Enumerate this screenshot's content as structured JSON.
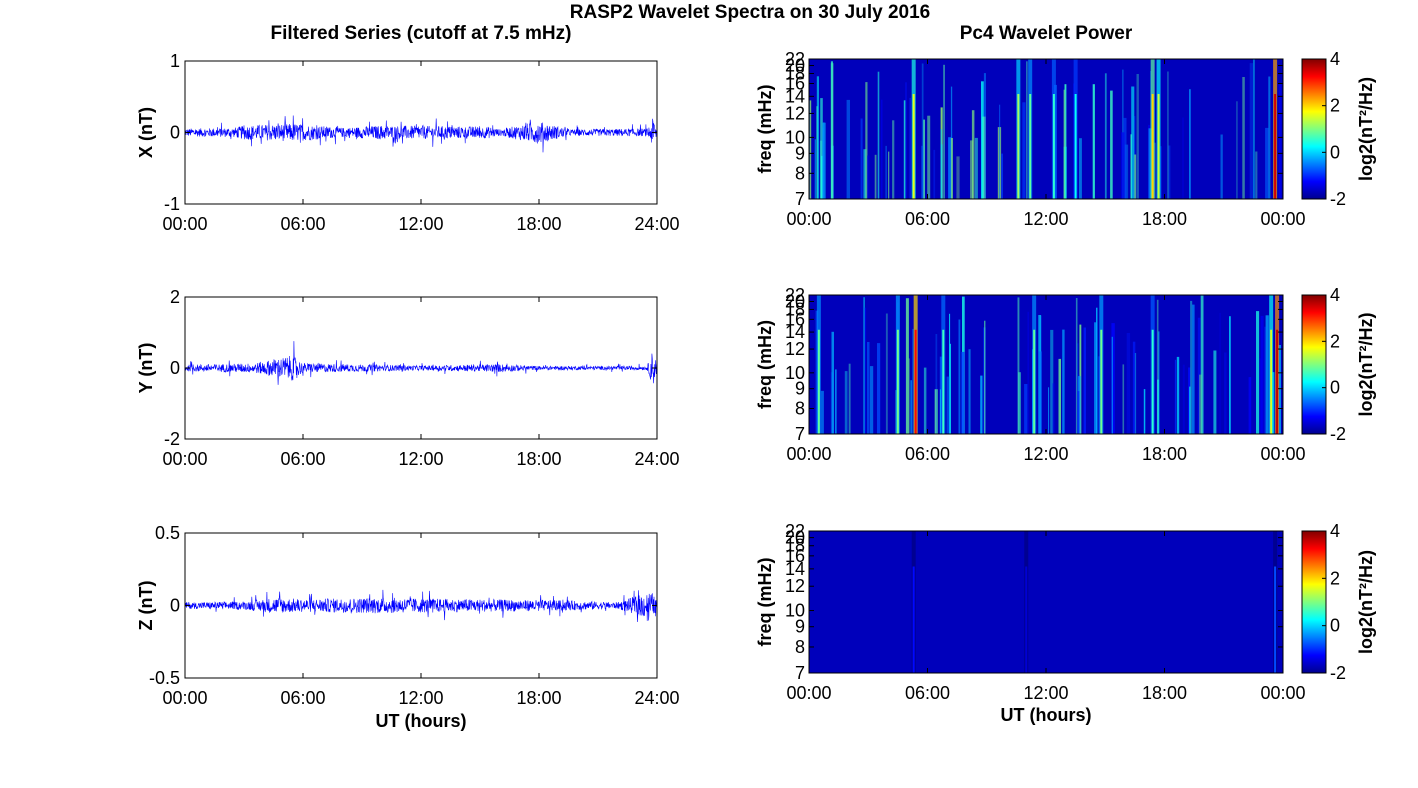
{
  "figure": {
    "title": "RASP2 Wavelet Spectra on 30 July 2016",
    "left_title": "Filtered Series (cutoff at 7.5 mHz)",
    "right_title": "Pc4 Wavelet Power"
  },
  "chart_data": [
    {
      "type": "line",
      "id": "x-series",
      "ylabel": "X (nT)",
      "ylim": [
        -1,
        1
      ],
      "yticks": [
        "1",
        "0",
        "-1"
      ],
      "xticks": [
        "00:00",
        "06:00",
        "12:00",
        "18:00",
        "24:00"
      ],
      "xlabel": "",
      "color": "#0000ff",
      "envelope": [
        {
          "t": 0,
          "a": 0.12
        },
        {
          "t": 2.5,
          "a": 0.15
        },
        {
          "t": 3,
          "a": 0.22
        },
        {
          "t": 5.5,
          "a": 0.28
        },
        {
          "t": 8,
          "a": 0.15
        },
        {
          "t": 10,
          "a": 0.22
        },
        {
          "t": 13,
          "a": 0.2
        },
        {
          "t": 15.5,
          "a": 0.18
        },
        {
          "t": 16,
          "a": 0.1
        },
        {
          "t": 17.5,
          "a": 0.3
        },
        {
          "t": 18,
          "a": 0.35
        },
        {
          "t": 19.5,
          "a": 0.1
        },
        {
          "t": 23.5,
          "a": 0.12
        },
        {
          "t": 23.8,
          "a": 0.45
        },
        {
          "t": 24,
          "a": 0.15
        }
      ]
    },
    {
      "type": "line",
      "id": "y-series",
      "ylabel": "Y (nT)",
      "ylim": [
        -2,
        2
      ],
      "yticks": [
        "2",
        "0",
        "-2"
      ],
      "xticks": [
        "00:00",
        "06:00",
        "12:00",
        "18:00",
        "24:00"
      ],
      "xlabel": "",
      "color": "#0000ff",
      "envelope": [
        {
          "t": 0,
          "a": 0.2
        },
        {
          "t": 3.5,
          "a": 0.3
        },
        {
          "t": 5.5,
          "a": 0.8
        },
        {
          "t": 6,
          "a": 0.3
        },
        {
          "t": 10,
          "a": 0.2
        },
        {
          "t": 12,
          "a": 0.15
        },
        {
          "t": 16,
          "a": 0.25
        },
        {
          "t": 18,
          "a": 0.12
        },
        {
          "t": 23.5,
          "a": 0.12
        },
        {
          "t": 23.8,
          "a": 1.2
        },
        {
          "t": 24,
          "a": 0.3
        }
      ]
    },
    {
      "type": "line",
      "id": "z-series",
      "ylabel": "Z (nT)",
      "ylim": [
        -0.5,
        0.5
      ],
      "yticks": [
        "0.5",
        "0",
        "-0.5"
      ],
      "xticks": [
        "00:00",
        "06:00",
        "12:00",
        "18:00",
        "24:00"
      ],
      "xlabel": "UT (hours)",
      "color": "#0000ff",
      "envelope": [
        {
          "t": 0,
          "a": 0.05
        },
        {
          "t": 3,
          "a": 0.06
        },
        {
          "t": 4.5,
          "a": 0.12
        },
        {
          "t": 6,
          "a": 0.1
        },
        {
          "t": 10,
          "a": 0.12
        },
        {
          "t": 14,
          "a": 0.1
        },
        {
          "t": 19,
          "a": 0.08
        },
        {
          "t": 22,
          "a": 0.05
        },
        {
          "t": 23.7,
          "a": 0.22
        },
        {
          "t": 24,
          "a": 0.06
        }
      ]
    },
    {
      "type": "heatmap",
      "id": "x-wavelet",
      "ylabel": "freq (mHz)",
      "colorbar_label": "log2(nT²/Hz)",
      "colorbar_ticks": [
        "4",
        "2",
        "0",
        "-2"
      ],
      "clim": [
        -2,
        4
      ],
      "yticks": [
        "22",
        "20",
        "18",
        "16",
        "14",
        "12",
        "10",
        "9",
        "8",
        "7"
      ],
      "xticks": [
        "00:00",
        "06:00",
        "12:00",
        "18:00",
        "00:00"
      ],
      "xlabel": "",
      "colorscale": "jet",
      "streaks": [
        {
          "t": 5.3,
          "v": 1.6
        },
        {
          "t": 10.6,
          "v": 1.2
        },
        {
          "t": 11.2,
          "v": 0.8
        },
        {
          "t": 12.4,
          "v": 0.5
        },
        {
          "t": 13.5,
          "v": 0.3
        },
        {
          "t": 17.4,
          "v": 2.0
        },
        {
          "t": 17.7,
          "v": 1.4
        },
        {
          "t": 23.6,
          "v": 3.5
        }
      ]
    },
    {
      "type": "heatmap",
      "id": "y-wavelet",
      "ylabel": "freq (mHz)",
      "colorbar_label": "log2(nT²/Hz)",
      "colorbar_ticks": [
        "4",
        "2",
        "0",
        "-2"
      ],
      "clim": [
        -2,
        4
      ],
      "yticks": [
        "22",
        "20",
        "18",
        "16",
        "14",
        "12",
        "10",
        "9",
        "8",
        "7"
      ],
      "xticks": [
        "00:00",
        "06:00",
        "12:00",
        "18:00",
        "00:00"
      ],
      "xlabel": "",
      "colorscale": "jet",
      "streaks": [
        {
          "t": 0.5,
          "v": 0.8
        },
        {
          "t": 4.5,
          "v": 0.9
        },
        {
          "t": 5.4,
          "v": 3.2
        },
        {
          "t": 6.8,
          "v": 0.6
        },
        {
          "t": 11.4,
          "v": 0.8
        },
        {
          "t": 14.8,
          "v": 0.9
        },
        {
          "t": 17.4,
          "v": 0.5
        },
        {
          "t": 23.4,
          "v": 1.5
        },
        {
          "t": 23.7,
          "v": 3.6
        }
      ]
    },
    {
      "type": "heatmap",
      "id": "z-wavelet",
      "ylabel": "freq (mHz)",
      "colorbar_label": "log2(nT²/Hz)",
      "colorbar_ticks": [
        "4",
        "2",
        "0",
        "-2"
      ],
      "clim": [
        -2,
        4
      ],
      "yticks": [
        "22",
        "20",
        "18",
        "16",
        "14",
        "12",
        "10",
        "9",
        "8",
        "7"
      ],
      "xticks": [
        "00:00",
        "06:00",
        "12:00",
        "18:00",
        "00:00"
      ],
      "xlabel": "UT (hours)",
      "colorscale": "jet",
      "streaks": [
        {
          "t": 5.3,
          "v": -1.2
        },
        {
          "t": 11.0,
          "v": -1.5
        },
        {
          "t": 23.6,
          "v": -0.8
        }
      ]
    }
  ]
}
